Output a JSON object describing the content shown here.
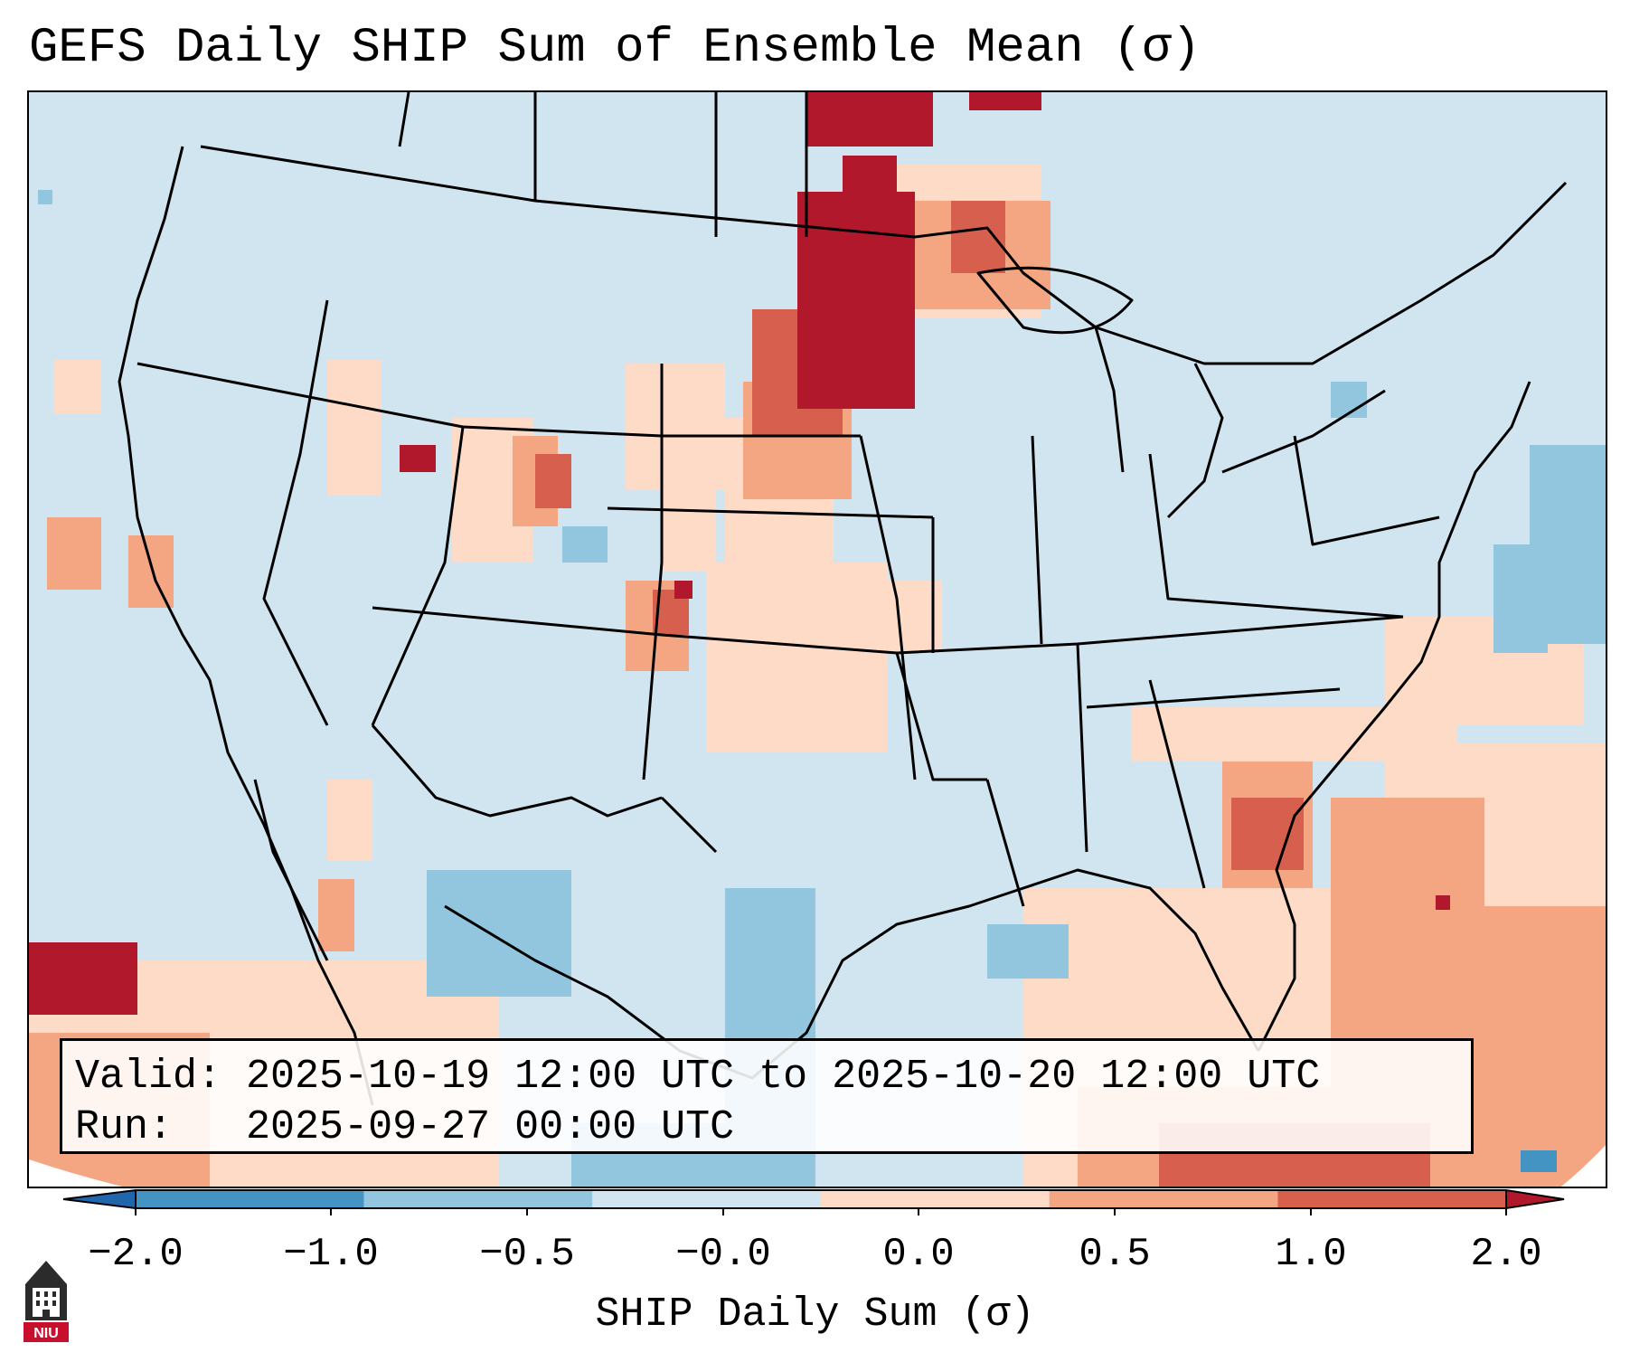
{
  "title": "GEFS Daily SHIP Sum of Ensemble Mean (σ)",
  "info": {
    "valid_label": "Valid:",
    "valid_value": "2025-10-19 12:00 UTC to 2025-10-20 12:00 UTC",
    "run_label": "Run:",
    "run_value": "2025-09-27 00:00 UTC"
  },
  "colorbar": {
    "label": "SHIP Daily Sum (σ)",
    "ticks": [
      "−2.0",
      "−1.0",
      "−0.5",
      "−0.0",
      "0.0",
      "0.5",
      "1.0",
      "2.0"
    ],
    "colors": [
      "#2166ac",
      "#4393c3",
      "#92c5de",
      "#d1e5f0",
      "#fddbc7",
      "#f4a582",
      "#d6604d",
      "#b2182b"
    ]
  },
  "logo": {
    "text": "NIU",
    "name": "niu-logo"
  },
  "map": {
    "land_color": "#d1e5f0",
    "border_color": "#000000"
  }
}
